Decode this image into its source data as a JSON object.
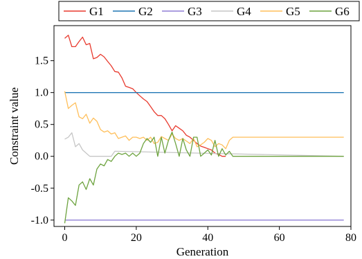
{
  "chart_data": {
    "type": "line",
    "xlabel": "Generation",
    "ylabel": "Constraint value",
    "xlim": [
      -3,
      80
    ],
    "ylim": [
      -1.1,
      2.05
    ],
    "xticks": [
      0,
      20,
      40,
      60,
      80
    ],
    "xtick_labels": [
      "0",
      "20",
      "40",
      "60",
      "80"
    ],
    "yticks": [
      -1.0,
      -0.5,
      0.0,
      0.5,
      1.0,
      1.5
    ],
    "ytick_labels": [
      "-1.0",
      "-0.5",
      "0.0",
      "0.5",
      "1.0",
      "1.5"
    ],
    "legend_position": "top",
    "grid": false,
    "series": [
      {
        "name": "G1",
        "color": "#e8392d",
        "x": [
          0,
          1,
          2,
          3,
          4,
          5,
          6,
          7,
          8,
          9,
          10,
          11,
          12,
          13,
          14,
          15,
          16,
          17,
          18,
          19,
          20,
          21,
          22,
          23,
          24,
          25,
          26,
          27,
          28,
          29,
          30,
          31,
          32,
          33,
          34,
          35,
          36,
          37,
          38,
          39,
          40,
          41,
          42,
          43,
          44,
          45
        ],
        "values": [
          1.85,
          1.9,
          1.72,
          1.72,
          1.8,
          1.87,
          1.75,
          1.77,
          1.53,
          1.55,
          1.6,
          1.56,
          1.49,
          1.42,
          1.33,
          1.32,
          1.23,
          1.1,
          1.08,
          1.06,
          1.0,
          0.95,
          0.9,
          0.86,
          0.78,
          0.7,
          0.64,
          0.64,
          0.59,
          0.5,
          0.4,
          0.48,
          0.44,
          0.4,
          0.33,
          0.3,
          0.25,
          0.2,
          0.16,
          0.14,
          0.12,
          0.1,
          0.05,
          0.03,
          0.0,
          0.0
        ]
      },
      {
        "name": "G2",
        "color": "#1f77b4",
        "x": [
          0,
          78
        ],
        "values": [
          1.0,
          1.0
        ]
      },
      {
        "name": "G3",
        "color": "#8f7fd6",
        "x": [
          0,
          78
        ],
        "values": [
          -1.0,
          -1.0
        ]
      },
      {
        "name": "G4",
        "color": "#c6c6c6",
        "x": [
          0,
          1,
          2,
          3,
          4,
          5,
          6,
          7,
          8,
          13,
          14,
          78
        ],
        "values": [
          0.27,
          0.3,
          0.37,
          0.15,
          0.2,
          0.1,
          0.05,
          0.0,
          0.0,
          0.0,
          0.08,
          0.0
        ]
      },
      {
        "name": "G5",
        "color": "#ffbf5a",
        "x": [
          0,
          1,
          2,
          3,
          4,
          5,
          6,
          7,
          8,
          9,
          10,
          11,
          12,
          13,
          14,
          15,
          16,
          17,
          18,
          19,
          20,
          21,
          22,
          23,
          24,
          25,
          26,
          27,
          28,
          29,
          30,
          31,
          32,
          33,
          34,
          35,
          36,
          37,
          38,
          39,
          40,
          41,
          42,
          43,
          44,
          45,
          46,
          47,
          48,
          78
        ],
        "values": [
          1.02,
          0.75,
          0.8,
          0.84,
          0.62,
          0.59,
          0.66,
          0.52,
          0.6,
          0.55,
          0.42,
          0.38,
          0.4,
          0.35,
          0.37,
          0.28,
          0.3,
          0.32,
          0.25,
          0.3,
          0.3,
          0.28,
          0.3,
          0.25,
          0.3,
          0.2,
          0.22,
          0.31,
          0.28,
          0.25,
          0.35,
          0.28,
          0.25,
          0.28,
          0.24,
          0.2,
          0.28,
          0.15,
          0.18,
          0.22,
          0.28,
          0.25,
          0.15,
          0.2,
          0.18,
          0.12,
          0.25,
          0.3,
          0.3,
          0.3
        ]
      },
      {
        "name": "G6",
        "color": "#6da33f",
        "x": [
          0,
          1,
          2,
          3,
          4,
          5,
          6,
          7,
          8,
          9,
          10,
          11,
          12,
          13,
          14,
          15,
          16,
          17,
          18,
          19,
          20,
          21,
          22,
          23,
          24,
          25,
          26,
          27,
          28,
          29,
          30,
          31,
          32,
          33,
          34,
          35,
          36,
          37,
          38,
          39,
          40,
          41,
          42,
          43,
          44,
          45,
          46,
          47,
          48,
          78
        ],
        "values": [
          -1.05,
          -0.65,
          -0.7,
          -0.77,
          -0.45,
          -0.4,
          -0.52,
          -0.35,
          -0.45,
          -0.2,
          -0.12,
          -0.15,
          -0.05,
          -0.08,
          0.0,
          0.05,
          0.03,
          0.05,
          0.0,
          0.05,
          0.0,
          0.05,
          0.2,
          0.28,
          0.22,
          0.3,
          0.0,
          0.3,
          0.05,
          0.25,
          0.38,
          0.2,
          0.0,
          0.28,
          0.1,
          0.0,
          0.3,
          0.3,
          0.0,
          0.05,
          0.1,
          0.02,
          0.25,
          0.0,
          0.12,
          0.02,
          0.08,
          0.0,
          0.0,
          0.0
        ]
      }
    ]
  }
}
